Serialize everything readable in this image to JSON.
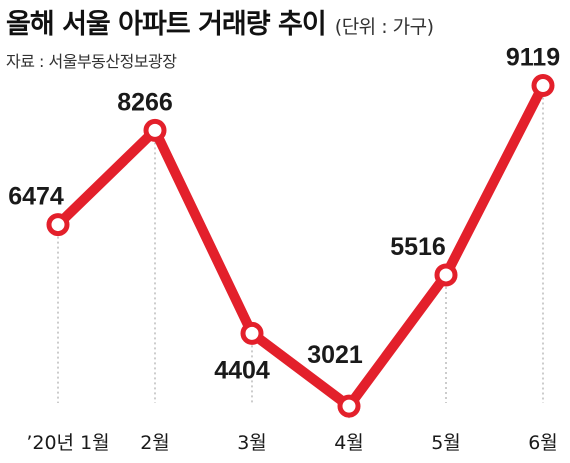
{
  "header": {
    "title": "올해 서울 아파트 거래량 추이",
    "unit": "(단위 : 가구)",
    "source": "자료 : 서울부동산정보광장"
  },
  "colors": {
    "line": "#e3202b",
    "marker_fill": "#ffffff",
    "guide": "#9a9a9a",
    "text": "#1a1a1a"
  },
  "chart_data": {
    "type": "line",
    "title": "올해 서울 아파트 거래량 추이",
    "unit": "(단위 : 가구)",
    "categories": [
      "’20년 1월",
      "2월",
      "3월",
      "4월",
      "5월",
      "6월"
    ],
    "values": [
      6474,
      8266,
      4404,
      3021,
      5516,
      9119
    ],
    "data_labels": [
      "6474",
      "8266",
      "4404",
      "3021",
      "5516",
      "9119"
    ],
    "ylim": [
      2300,
      9700
    ],
    "grid": false,
    "legend": "none",
    "marker": "circle"
  }
}
